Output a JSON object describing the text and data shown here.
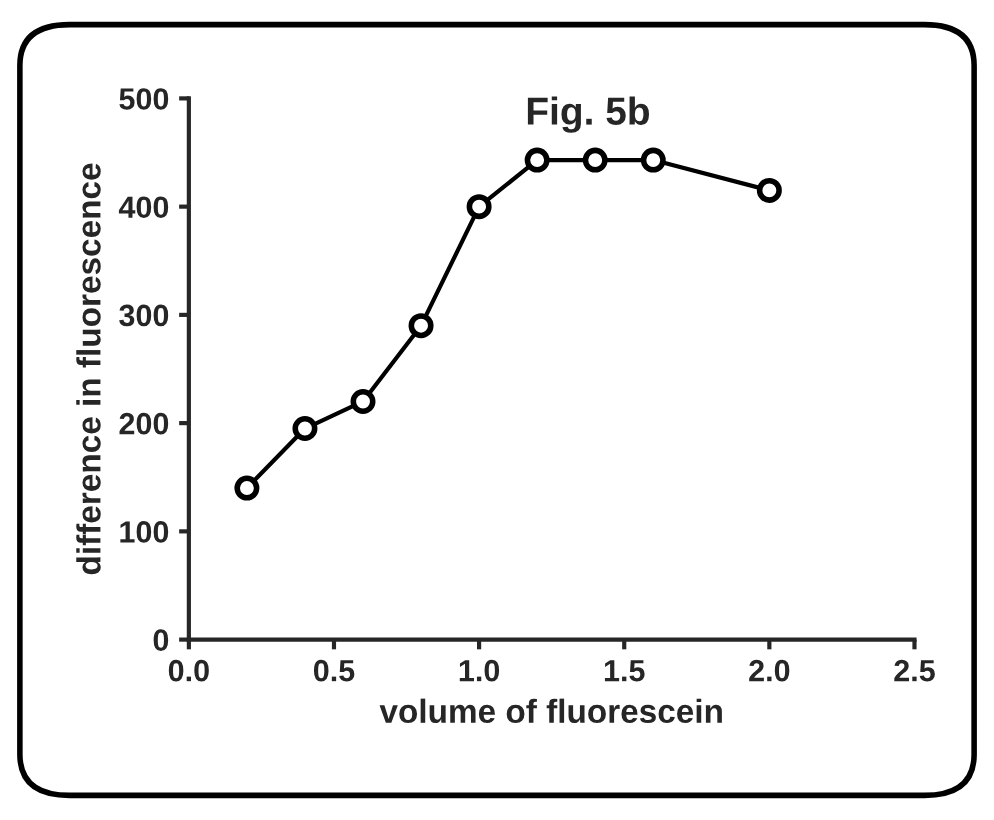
{
  "chart_data": {
    "type": "line",
    "title": "Fig. 5b",
    "xlabel": "volume of fluorescein",
    "ylabel": "difference in fluorescence",
    "x": [
      0.2,
      0.4,
      0.6,
      0.8,
      1.0,
      1.2,
      1.4,
      1.6,
      2.0
    ],
    "series": [
      {
        "color": "#000000",
        "values": [
          140,
          195,
          220,
          290,
          400,
          443,
          443,
          443,
          415
        ]
      }
    ],
    "marker": "circle",
    "line_style": "solid",
    "grid": false,
    "legend": false,
    "xlim": [
      0.0,
      2.5
    ],
    "xticks": [
      {
        "value": 0.0,
        "label": "0.0"
      },
      {
        "value": 0.5,
        "label": "0.5"
      },
      {
        "value": 1.0,
        "label": "1.0"
      },
      {
        "value": 1.5,
        "label": "1.5"
      },
      {
        "value": 2.0,
        "label": "2.0"
      },
      {
        "value": 2.5,
        "label": "2.5"
      }
    ],
    "ylim": [
      0,
      500
    ],
    "yticks": [
      0,
      100,
      200,
      300,
      400,
      500
    ]
  }
}
